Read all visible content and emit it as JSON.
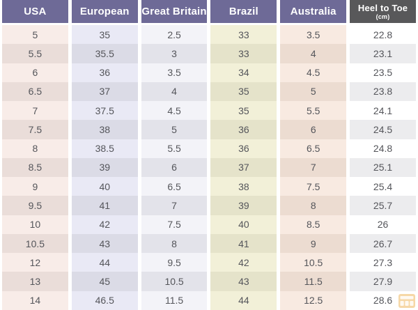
{
  "table": {
    "headers": [
      {
        "key": "usa",
        "label": "USA"
      },
      {
        "key": "european",
        "label": "European"
      },
      {
        "key": "great_britain",
        "label": "Great Britain"
      },
      {
        "key": "brazil",
        "label": "Brazil"
      },
      {
        "key": "australia",
        "label": "Australia"
      },
      {
        "key": "heel_to_toe",
        "label": "Heel to Toe",
        "sublabel": "(cm)",
        "dark": true
      }
    ],
    "columns": [
      [
        "5",
        "5.5",
        "6",
        "6.5",
        "7",
        "7.5",
        "8",
        "8.5",
        "9",
        "9.5",
        "10",
        "10.5",
        "12",
        "13",
        "14"
      ],
      [
        "35",
        "35.5",
        "36",
        "37",
        "37.5",
        "38",
        "38.5",
        "39",
        "40",
        "41",
        "42",
        "43",
        "44",
        "45",
        "46.5"
      ],
      [
        "2.5",
        "3",
        "3.5",
        "4",
        "4.5",
        "5",
        "5.5",
        "6",
        "6.5",
        "7",
        "7.5",
        "8",
        "9.5",
        "10.5",
        "11.5"
      ],
      [
        "33",
        "33",
        "34",
        "35",
        "35",
        "36",
        "36",
        "37",
        "38",
        "39",
        "40",
        "41",
        "42",
        "43",
        "44"
      ],
      [
        "3.5",
        "4",
        "4.5",
        "5",
        "5.5",
        "6",
        "6.5",
        "7",
        "7.5",
        "8",
        "8.5",
        "9",
        "10.5",
        "11.5",
        "12.5"
      ],
      [
        "22.8",
        "23.1",
        "23.5",
        "23.8",
        "24.1",
        "24.5",
        "24.8",
        "25.1",
        "25.4",
        "25.7",
        "26",
        "26.7",
        "27.3",
        "27.9",
        "28.6"
      ]
    ]
  },
  "colors": {
    "header_purple": "#6e6a97",
    "header_dark": "#58585a",
    "cell_text": "#54555a",
    "columns": [
      {
        "light": "#f8ece8",
        "dark": "#eaddd9"
      },
      {
        "light": "#e9e9f5",
        "dark": "#dbdbe6"
      },
      {
        "light": "#f3f3f8",
        "dark": "#e3e3ea"
      },
      {
        "light": "#f2f0d8",
        "dark": "#e5e3ca"
      },
      {
        "light": "#f8eae1",
        "dark": "#ecdcd1"
      },
      {
        "light": "#ffffff",
        "dark": "#ececee"
      }
    ],
    "watermark_orange": "#eda93e"
  },
  "icons": {
    "watermark": "table-logo-icon"
  },
  "chart_data": {
    "type": "table",
    "title": "Shoe size conversion chart",
    "columns": [
      "USA",
      "European",
      "Great Britain",
      "Brazil",
      "Australia",
      "Heel to Toe (cm)"
    ],
    "rows": [
      [
        5,
        35,
        2.5,
        33,
        3.5,
        22.8
      ],
      [
        5.5,
        35.5,
        3,
        33,
        4,
        23.1
      ],
      [
        6,
        36,
        3.5,
        34,
        4.5,
        23.5
      ],
      [
        6.5,
        37,
        4,
        35,
        5,
        23.8
      ],
      [
        7,
        37.5,
        4.5,
        35,
        5.5,
        24.1
      ],
      [
        7.5,
        38,
        5,
        36,
        6,
        24.5
      ],
      [
        8,
        38.5,
        5.5,
        36,
        6.5,
        24.8
      ],
      [
        8.5,
        39,
        6,
        37,
        7,
        25.1
      ],
      [
        9,
        40,
        6.5,
        38,
        7.5,
        25.4
      ],
      [
        9.5,
        41,
        7,
        39,
        8,
        25.7
      ],
      [
        10,
        42,
        7.5,
        40,
        8.5,
        26
      ],
      [
        10.5,
        43,
        8,
        41,
        9,
        26.7
      ],
      [
        12,
        44,
        9.5,
        42,
        10.5,
        27.3
      ],
      [
        13,
        45,
        10.5,
        43,
        11.5,
        27.9
      ],
      [
        14,
        46.5,
        11.5,
        44,
        12.5,
        28.6
      ]
    ],
    "layout": {
      "row_striping": true,
      "header_position": "top",
      "grid": false
    }
  }
}
